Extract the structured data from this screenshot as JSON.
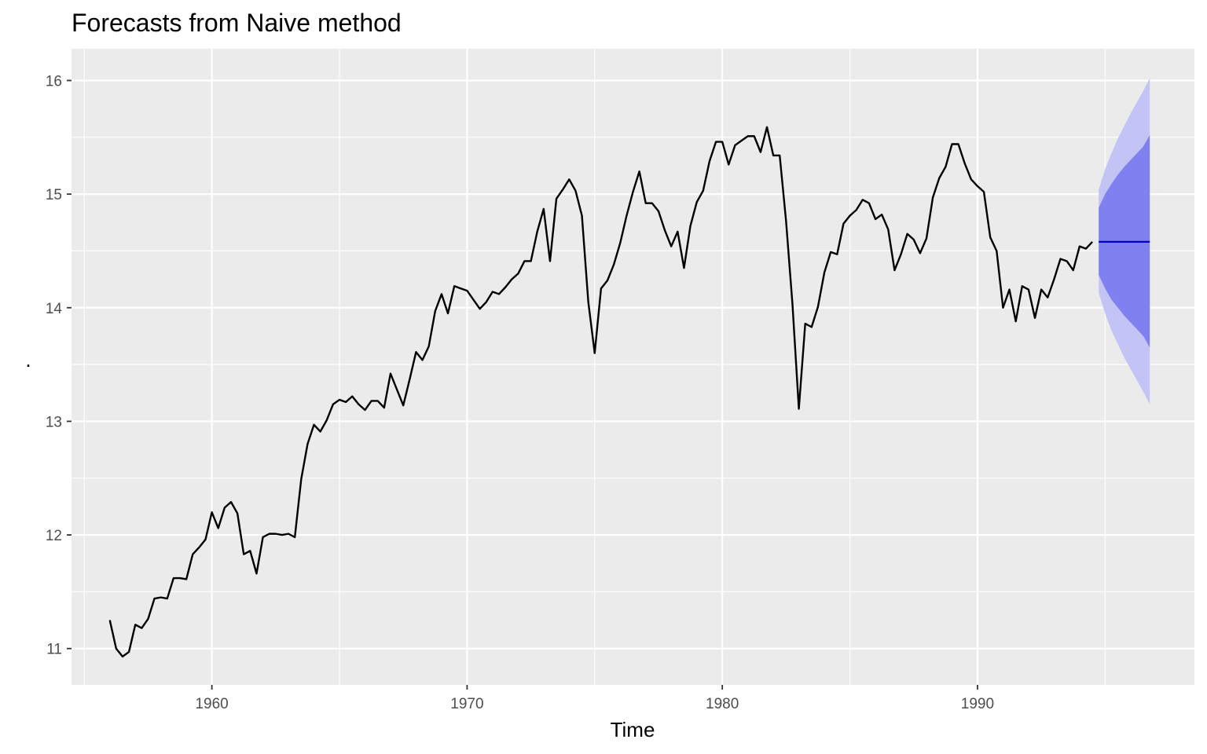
{
  "chart_data": {
    "type": "line",
    "title": "Forecasts from Naive method",
    "xlabel": "Time",
    "ylabel": ".",
    "xlim": [
      1954.5,
      1998.5
    ],
    "ylim": [
      10.68,
      16.28
    ],
    "x_ticks": [
      1960,
      1970,
      1980,
      1990
    ],
    "y_ticks": [
      11,
      12,
      13,
      14,
      15,
      16
    ],
    "grid": true,
    "panel_background": "#ebebeb",
    "grid_color": "#ffffff",
    "series": [
      {
        "role": "history",
        "color": "#000000",
        "start": 1956.0,
        "frequency": 4,
        "values": [
          11.25,
          11.0,
          10.93,
          10.97,
          11.21,
          11.18,
          11.26,
          11.44,
          11.45,
          11.44,
          11.62,
          11.62,
          11.61,
          11.83,
          11.89,
          11.96,
          12.2,
          12.06,
          12.24,
          12.29,
          12.19,
          11.83,
          11.86,
          11.66,
          11.98,
          12.01,
          12.01,
          12.0,
          12.01,
          11.98,
          12.49,
          12.8,
          12.97,
          12.91,
          13.01,
          13.15,
          13.19,
          13.17,
          13.22,
          13.15,
          13.1,
          13.18,
          13.18,
          13.12,
          13.42,
          13.28,
          13.14,
          13.37,
          13.61,
          13.54,
          13.66,
          13.97,
          14.12,
          13.95,
          14.19,
          14.17,
          14.15,
          14.07,
          13.99,
          14.05,
          14.14,
          14.12,
          14.18,
          14.25,
          14.3,
          14.41,
          14.41,
          14.67,
          14.87,
          14.41,
          14.96,
          15.04,
          15.13,
          15.03,
          14.81,
          14.05,
          13.6,
          14.17,
          14.24,
          14.38,
          14.57,
          14.81,
          15.02,
          15.2,
          14.92,
          14.92,
          14.85,
          14.68,
          14.54,
          14.67,
          14.35,
          14.72,
          14.93,
          15.03,
          15.29,
          15.46,
          15.46,
          15.26,
          15.43,
          15.47,
          15.51,
          15.51,
          15.37,
          15.59,
          15.34,
          15.34,
          14.76,
          14.03,
          13.11,
          13.86,
          13.83,
          14.01,
          14.31,
          14.49,
          14.47,
          14.74,
          14.81,
          14.86,
          14.95,
          14.92,
          14.78,
          14.82,
          14.69,
          14.33,
          14.47,
          14.65,
          14.6,
          14.48,
          14.61,
          14.97,
          15.14,
          15.24,
          15.44,
          15.44,
          15.27,
          15.13,
          15.07,
          15.02,
          14.62,
          14.5,
          14.0,
          14.16,
          13.88,
          14.19,
          14.16,
          13.91,
          14.16,
          14.09,
          14.25,
          14.43,
          14.41,
          14.33,
          14.54,
          14.52,
          14.58
        ]
      },
      {
        "role": "point-forecast",
        "color": "#0000cc",
        "x": [
          1994.75,
          1996.75
        ],
        "values": [
          14.58,
          14.58
        ]
      }
    ],
    "intervals": [
      {
        "level": 95,
        "color": "#c3c3f5",
        "x": [
          1994.75,
          1995.0,
          1995.25,
          1995.5,
          1995.75,
          1996.0,
          1996.25,
          1996.5,
          1996.75
        ],
        "lower": [
          14.13,
          13.95,
          13.8,
          13.68,
          13.56,
          13.46,
          13.36,
          13.26,
          13.15
        ],
        "upper": [
          15.04,
          15.22,
          15.36,
          15.49,
          15.6,
          15.71,
          15.81,
          15.91,
          16.02
        ]
      },
      {
        "level": 80,
        "color": "#8080f0",
        "x": [
          1994.75,
          1995.0,
          1995.25,
          1995.5,
          1995.75,
          1996.0,
          1996.25,
          1996.5,
          1996.75
        ],
        "lower": [
          14.29,
          14.17,
          14.07,
          14.0,
          13.93,
          13.87,
          13.81,
          13.75,
          13.65
        ],
        "upper": [
          14.88,
          15.0,
          15.09,
          15.17,
          15.24,
          15.3,
          15.36,
          15.42,
          15.52
        ]
      }
    ]
  }
}
